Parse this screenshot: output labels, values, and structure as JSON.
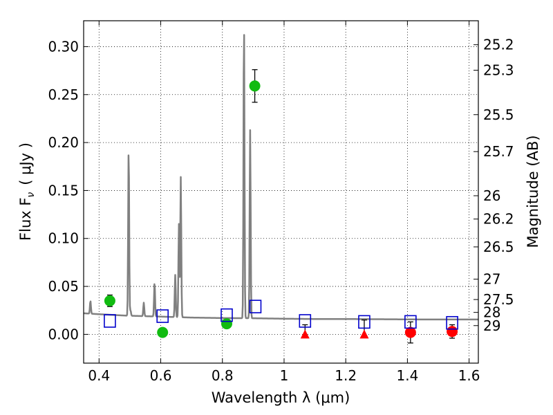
{
  "chart_data": {
    "type": "scatter",
    "xlabel": "Wavelength  λ (μm)",
    "ylabel": "Flux  F",
    "ylabel_sub": "ν",
    "ylabel_unit": "( μJy )",
    "y2label": "Magnitude (AB)",
    "xlim": [
      0.35,
      1.63
    ],
    "ylim": [
      -0.03,
      0.327
    ],
    "grid": true,
    "x_ticks": [
      {
        "value": 0.4,
        "label": "0.4"
      },
      {
        "value": 0.6,
        "label": "0.6"
      },
      {
        "value": 0.8,
        "label": "0.8"
      },
      {
        "value": 1.0,
        "label": "1"
      },
      {
        "value": 1.2,
        "label": "1.2"
      },
      {
        "value": 1.4,
        "label": "1.4"
      },
      {
        "value": 1.6,
        "label": "1.6"
      }
    ],
    "y_ticks": [
      {
        "value": 0.0,
        "label": "0.00"
      },
      {
        "value": 0.05,
        "label": "0.05"
      },
      {
        "value": 0.1,
        "label": "0.10"
      },
      {
        "value": 0.15,
        "label": "0.15"
      },
      {
        "value": 0.2,
        "label": "0.20"
      },
      {
        "value": 0.25,
        "label": "0.25"
      },
      {
        "value": 0.3,
        "label": "0.30"
      }
    ],
    "mag_ticks": [
      {
        "value": 25.2,
        "label": "25.2"
      },
      {
        "value": 25.3,
        "label": "25.3"
      },
      {
        "value": 25.5,
        "label": "25.5"
      },
      {
        "value": 25.7,
        "label": "25.7"
      },
      {
        "value": 26.0,
        "label": "26"
      },
      {
        "value": 26.2,
        "label": "26.2"
      },
      {
        "value": 26.5,
        "label": "26.5"
      },
      {
        "value": 27.0,
        "label": "27"
      },
      {
        "value": 27.5,
        "label": "27.5"
      },
      {
        "value": 28.0,
        "label": "28"
      },
      {
        "value": 29.0,
        "label": "29"
      }
    ],
    "model_spectrum": {
      "name": "SED model",
      "color": "#808080",
      "continuum": [
        [
          0.35,
          0.022
        ],
        [
          0.4,
          0.021
        ],
        [
          0.49,
          0.0195
        ],
        [
          0.6,
          0.0185
        ],
        [
          0.7,
          0.0175
        ],
        [
          0.8,
          0.017
        ],
        [
          0.9,
          0.0168
        ],
        [
          1.0,
          0.0163
        ],
        [
          1.1,
          0.016
        ],
        [
          1.2,
          0.016
        ],
        [
          1.3,
          0.0158
        ],
        [
          1.4,
          0.0156
        ],
        [
          1.5,
          0.0155
        ],
        [
          1.63,
          0.0155
        ]
      ],
      "lines": [
        {
          "x": 0.372,
          "peak": 0.035
        },
        {
          "x": 0.496,
          "peak": 0.195
        },
        {
          "x": 0.502,
          "peak": 0.025
        },
        {
          "x": 0.545,
          "peak": 0.033
        },
        {
          "x": 0.58,
          "peak": 0.054
        },
        {
          "x": 0.647,
          "peak": 0.062
        },
        {
          "x": 0.659,
          "peak": 0.115
        },
        {
          "x": 0.665,
          "peak": 0.164
        },
        {
          "x": 0.87,
          "peak": 0.327
        },
        {
          "x": 0.89,
          "peak": 0.213
        }
      ]
    },
    "series": [
      {
        "name": "observed detections (green)",
        "color": "#11bb11",
        "marker": "circle",
        "points": [
          {
            "x": 0.435,
            "y": 0.035,
            "err": 0.006
          },
          {
            "x": 0.606,
            "y": 0.002,
            "err": 0.003
          },
          {
            "x": 0.814,
            "y": 0.011,
            "err": 0.004
          },
          {
            "x": 0.905,
            "y": 0.259,
            "err": 0.017
          }
        ]
      },
      {
        "name": "observed NIR (red circles)",
        "color": "#ff0000",
        "marker": "circle",
        "points": [
          {
            "x": 1.41,
            "y": 0.002,
            "err": 0.011
          },
          {
            "x": 1.545,
            "y": 0.003,
            "err": 0.007
          }
        ]
      },
      {
        "name": "upper limits (red triangles)",
        "color": "#ff0000",
        "marker": "triangle",
        "points": [
          {
            "x": 1.068,
            "y": 0.0,
            "err_up": 0.01
          },
          {
            "x": 1.26,
            "y": 0.0,
            "err_up": 0.015
          }
        ]
      },
      {
        "name": "model photometry (blue squares)",
        "color": "#0000cc",
        "marker": "square",
        "points": [
          {
            "x": 0.435,
            "y": 0.014
          },
          {
            "x": 0.606,
            "y": 0.019
          },
          {
            "x": 0.814,
            "y": 0.02
          },
          {
            "x": 0.907,
            "y": 0.029
          },
          {
            "x": 1.068,
            "y": 0.014
          },
          {
            "x": 1.26,
            "y": 0.013
          },
          {
            "x": 1.41,
            "y": 0.013
          },
          {
            "x": 1.545,
            "y": 0.012
          }
        ]
      }
    ]
  }
}
